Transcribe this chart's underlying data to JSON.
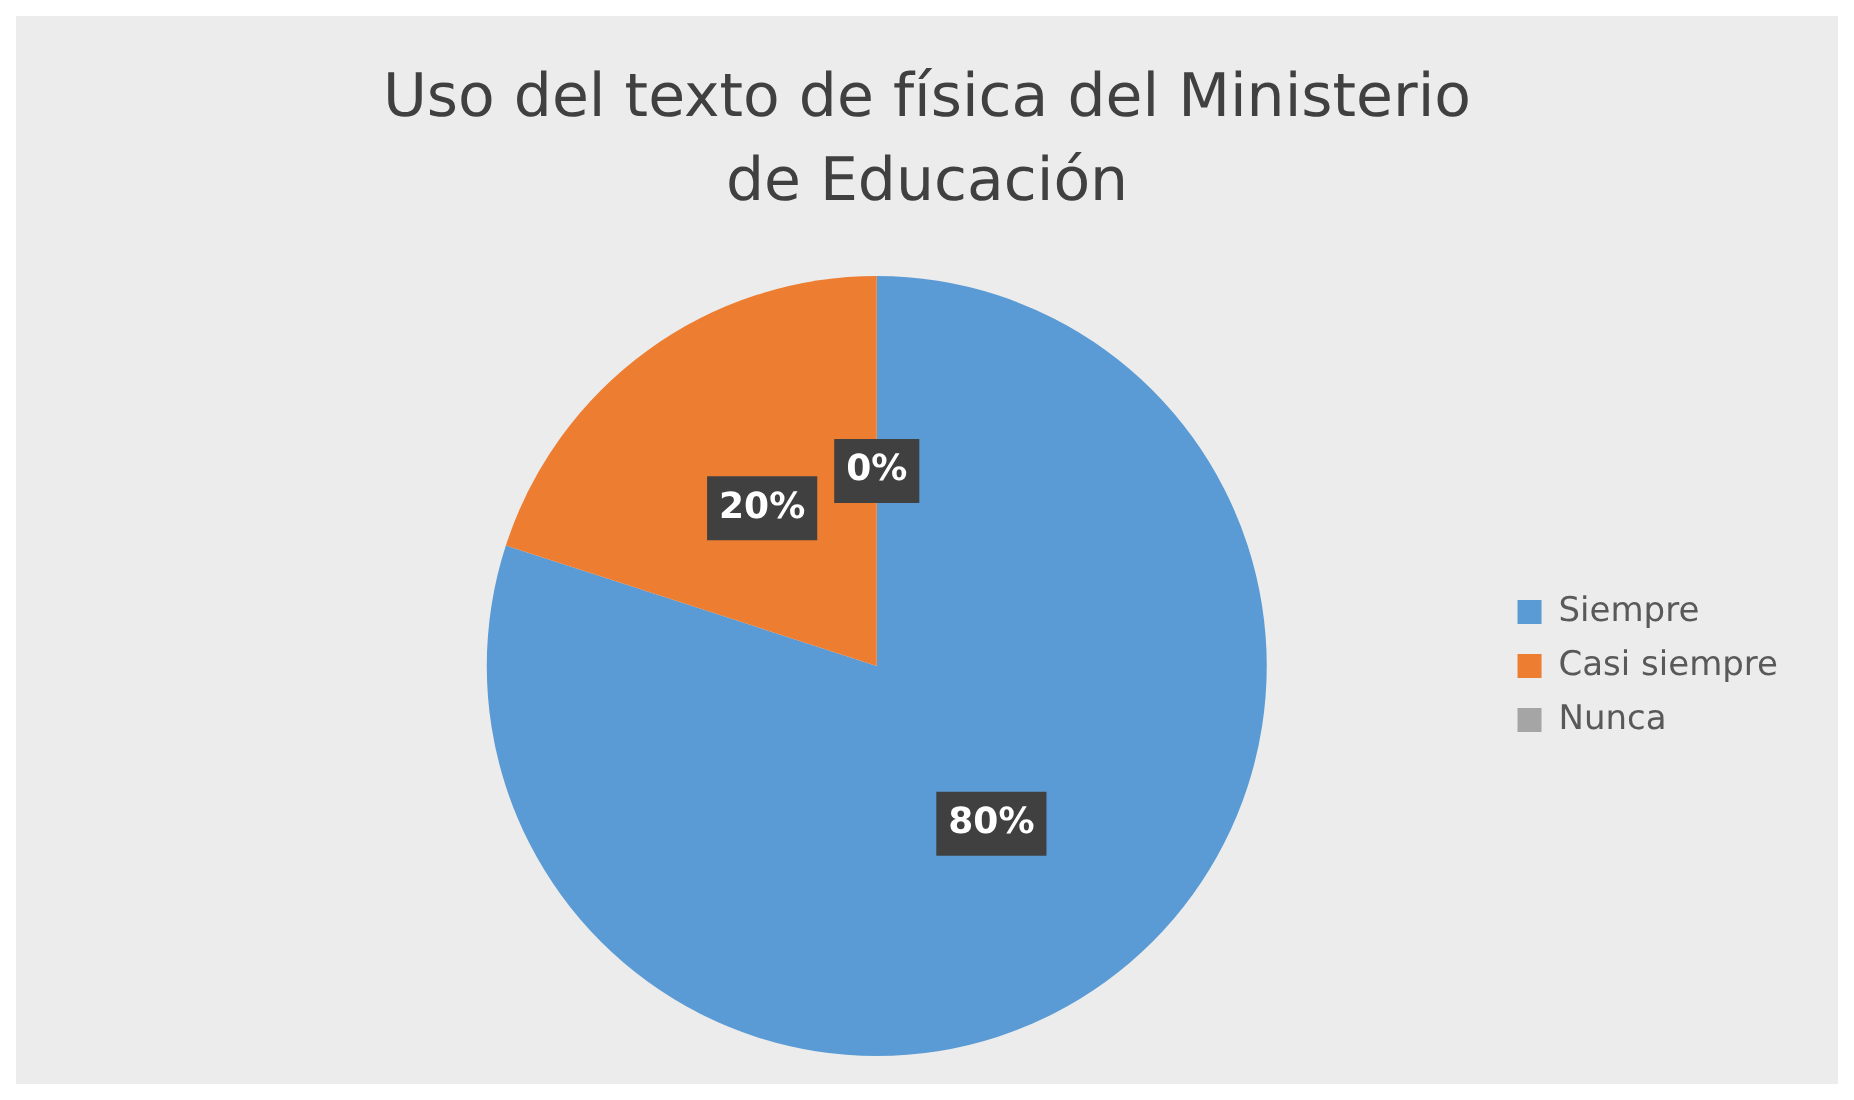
{
  "chart_data": {
    "type": "pie",
    "title": "Uso del texto de física del Ministerio de Educación",
    "categories": [
      "Siempre",
      "Casi siempre",
      "Nunca"
    ],
    "values": [
      80,
      20,
      0
    ],
    "value_labels": [
      "80%",
      "20%",
      "0%"
    ],
    "colors": [
      "#5b9bd5",
      "#ed7d31",
      "#a5a5a5"
    ],
    "legend": "right"
  }
}
